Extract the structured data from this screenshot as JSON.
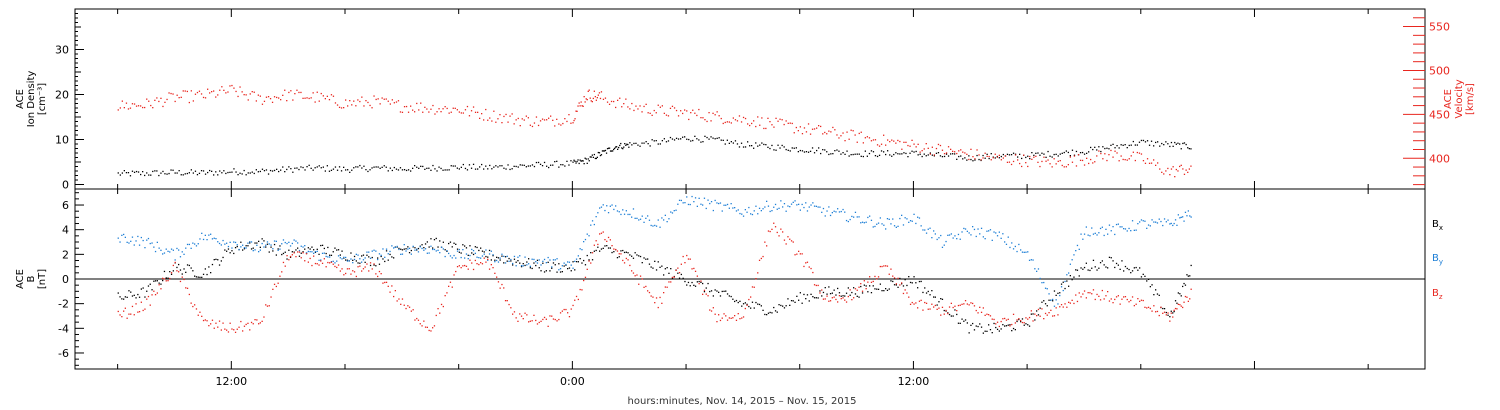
{
  "chart_data": [
    {
      "type": "scatter",
      "panel": "top",
      "ylabel_lines": [
        "ACE",
        "Ion Density",
        "[cm⁻³]"
      ],
      "ylabel_right_lines": [
        "ACE",
        "Velocity",
        "[km/s]"
      ],
      "ylim": [
        -1,
        39
      ],
      "ylim_right": [
        365,
        570
      ],
      "yticks_left": [
        0,
        10,
        20,
        30
      ],
      "yticks_right": [
        400,
        450,
        500,
        550
      ],
      "grid": false,
      "series": [
        {
          "key": "density",
          "axis": "left",
          "color": "#000000",
          "points": [
            [
              -4,
              2.5
            ],
            [
              -3,
              2.6
            ],
            [
              -2,
              2.8
            ],
            [
              -1,
              2.7
            ],
            [
              0,
              3.0
            ],
            [
              1,
              3.0
            ],
            [
              2,
              3.5
            ],
            [
              3,
              3.8
            ],
            [
              4,
              3.5
            ],
            [
              5,
              3.8
            ],
            [
              6,
              3.6
            ],
            [
              7,
              3.8
            ],
            [
              8,
              4.0
            ],
            [
              9,
              3.9
            ],
            [
              10,
              4.2
            ],
            [
              11,
              4.5
            ],
            [
              12,
              4.8
            ],
            [
              12.5,
              5.5
            ],
            [
              13,
              7.0
            ],
            [
              13.5,
              8.5
            ],
            [
              14,
              9.0
            ],
            [
              15,
              9.5
            ],
            [
              16,
              10.5
            ],
            [
              17,
              10.0
            ],
            [
              18,
              9.0
            ],
            [
              19,
              8.5
            ],
            [
              20,
              8.0
            ],
            [
              21,
              7.5
            ],
            [
              22,
              7.0
            ],
            [
              23,
              7.0
            ],
            [
              24,
              7.0
            ],
            [
              25,
              6.5
            ],
            [
              26,
              6.0
            ],
            [
              27,
              6.5
            ],
            [
              28,
              6.5
            ],
            [
              29,
              7.0
            ],
            [
              30,
              7.5
            ],
            [
              31,
              8.5
            ],
            [
              32,
              9.5
            ],
            [
              33,
              9.0
            ],
            [
              33.8,
              8.5
            ]
          ]
        },
        {
          "key": "velocity",
          "axis": "right",
          "color": "#e8261f",
          "points": [
            [
              -4,
              460
            ],
            [
              -3,
              462
            ],
            [
              -2,
              470
            ],
            [
              -1,
              472
            ],
            [
              0,
              478
            ],
            [
              1,
              468
            ],
            [
              2,
              473
            ],
            [
              3,
              470
            ],
            [
              4,
              463
            ],
            [
              5,
              465
            ],
            [
              6,
              460
            ],
            [
              7,
              458
            ],
            [
              8,
              456
            ],
            [
              9,
              450
            ],
            [
              10,
              445
            ],
            [
              11,
              442
            ],
            [
              12,
              448
            ],
            [
              12.5,
              473
            ],
            [
              13,
              470
            ],
            [
              14,
              460
            ],
            [
              15,
              455
            ],
            [
              16,
              452
            ],
            [
              17,
              448
            ],
            [
              18,
              445
            ],
            [
              19,
              440
            ],
            [
              20,
              435
            ],
            [
              21,
              430
            ],
            [
              22,
              425
            ],
            [
              23,
              420
            ],
            [
              24,
              415
            ],
            [
              25,
              410
            ],
            [
              26,
              405
            ],
            [
              27,
              400
            ],
            [
              28,
              398
            ],
            [
              29,
              395
            ],
            [
              30,
              400
            ],
            [
              31,
              405
            ],
            [
              32,
              400
            ],
            [
              33,
              385
            ],
            [
              33.8,
              390
            ]
          ]
        }
      ]
    },
    {
      "type": "scatter",
      "panel": "bottom",
      "ylabel_lines": [
        "ACE",
        "B",
        "[nT]"
      ],
      "ylim": [
        -7.3,
        7.3
      ],
      "yticks": [
        -6,
        -4,
        -2,
        0,
        2,
        4,
        6
      ],
      "zero_line": true,
      "grid": false,
      "legend": [
        "B",
        "B",
        "B"
      ],
      "legend_subscripts": [
        "x",
        "y",
        "z"
      ],
      "series": [
        {
          "key": "bx",
          "name": "Bx",
          "color": "#000000",
          "points": [
            [
              -4,
              -1.5
            ],
            [
              -3,
              -1.0
            ],
            [
              -2,
              1.0
            ],
            [
              -1,
              0.5
            ],
            [
              0,
              2.5
            ],
            [
              1,
              3.0
            ],
            [
              2,
              2.0
            ],
            [
              3,
              2.5
            ],
            [
              4,
              2.0
            ],
            [
              5,
              1.5
            ],
            [
              6,
              2.5
            ],
            [
              7,
              3.0
            ],
            [
              8,
              2.5
            ],
            [
              9,
              2.0
            ],
            [
              10,
              1.5
            ],
            [
              11,
              1.0
            ],
            [
              12,
              1.0
            ],
            [
              13,
              2.5
            ],
            [
              14,
              2.0
            ],
            [
              15,
              1.0
            ],
            [
              16,
              0.0
            ],
            [
              17,
              -1.0
            ],
            [
              18,
              -2.0
            ],
            [
              19,
              -2.5
            ],
            [
              20,
              -1.5
            ],
            [
              21,
              -1.0
            ],
            [
              22,
              -1.0
            ],
            [
              23,
              -0.5
            ],
            [
              24,
              0.0
            ],
            [
              25,
              -2.0
            ],
            [
              26,
              -4.0
            ],
            [
              27,
              -4.0
            ],
            [
              28,
              -3.5
            ],
            [
              29,
              -1.0
            ],
            [
              30,
              1.0
            ],
            [
              31,
              1.5
            ],
            [
              32,
              0.5
            ],
            [
              33,
              -3.0
            ],
            [
              33.8,
              1.0
            ]
          ]
        },
        {
          "key": "by",
          "name": "By",
          "color": "#1e7fd6",
          "points": [
            [
              -4,
              3.5
            ],
            [
              -3,
              3.0
            ],
            [
              -2,
              2.0
            ],
            [
              -1,
              3.5
            ],
            [
              0,
              3.0
            ],
            [
              1,
              2.5
            ],
            [
              2,
              3.0
            ],
            [
              3,
              2.0
            ],
            [
              4,
              1.5
            ],
            [
              5,
              2.0
            ],
            [
              6,
              2.5
            ],
            [
              7,
              2.5
            ],
            [
              8,
              2.0
            ],
            [
              9,
              2.0
            ],
            [
              10,
              1.5
            ],
            [
              11,
              1.5
            ],
            [
              12,
              1.0
            ],
            [
              13,
              6.0
            ],
            [
              14,
              5.5
            ],
            [
              15,
              4.5
            ],
            [
              16,
              6.5
            ],
            [
              17,
              6.0
            ],
            [
              18,
              5.5
            ],
            [
              19,
              6.0
            ],
            [
              20,
              6.0
            ],
            [
              21,
              5.5
            ],
            [
              22,
              5.0
            ],
            [
              23,
              4.5
            ],
            [
              24,
              5.0
            ],
            [
              25,
              3.0
            ],
            [
              26,
              4.0
            ],
            [
              27,
              3.5
            ],
            [
              28,
              2.0
            ],
            [
              29,
              -2.0
            ],
            [
              30,
              4.0
            ],
            [
              31,
              4.0
            ],
            [
              32,
              4.5
            ],
            [
              33,
              4.5
            ],
            [
              33.8,
              5.5
            ]
          ]
        },
        {
          "key": "bz",
          "name": "Bz",
          "color": "#e8261f",
          "points": [
            [
              -4,
              -3.0
            ],
            [
              -3,
              -2.0
            ],
            [
              -2,
              1.0
            ],
            [
              -1,
              -3.5
            ],
            [
              0,
              -4.0
            ],
            [
              1,
              -3.5
            ],
            [
              2,
              2.0
            ],
            [
              3,
              1.5
            ],
            [
              4,
              0.5
            ],
            [
              5,
              1.0
            ],
            [
              6,
              -2.0
            ],
            [
              7,
              -4.0
            ],
            [
              8,
              1.0
            ],
            [
              9,
              1.5
            ],
            [
              10,
              -3.0
            ],
            [
              11,
              -3.5
            ],
            [
              12,
              -2.5
            ],
            [
              13,
              4.0
            ],
            [
              14,
              1.0
            ],
            [
              15,
              -2.0
            ],
            [
              16,
              2.0
            ],
            [
              17,
              -3.0
            ],
            [
              18,
              -3.0
            ],
            [
              19,
              4.5
            ],
            [
              20,
              2.0
            ],
            [
              21,
              -2.0
            ],
            [
              22,
              -1.0
            ],
            [
              23,
              1.0
            ],
            [
              24,
              -2.0
            ],
            [
              25,
              -2.5
            ],
            [
              26,
              -2.0
            ],
            [
              27,
              -3.5
            ],
            [
              28,
              -3.0
            ],
            [
              29,
              -2.5
            ],
            [
              30,
              -1.0
            ],
            [
              31,
              -1.5
            ],
            [
              32,
              -2.0
            ],
            [
              33,
              -3.0
            ],
            [
              33.8,
              -1.0
            ]
          ]
        }
      ],
      "xlim": [
        -5.5,
        42
      ],
      "xticks": [
        {
          "t": 0,
          "label": "12:00"
        },
        {
          "t": 12,
          "label": "0:00"
        },
        {
          "t": 24,
          "label": "12:00"
        }
      ],
      "xlabel": "hours:minutes, Nov. 14, 2015 – Nov. 15, 2015"
    }
  ]
}
